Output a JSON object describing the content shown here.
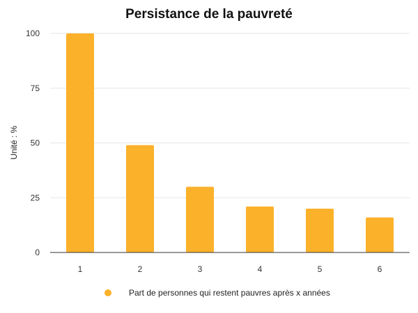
{
  "chart_data": {
    "type": "bar",
    "title": "Persistance de la pauvreté",
    "xlabel": "",
    "ylabel": "Unité : %",
    "categories": [
      "1",
      "2",
      "3",
      "4",
      "5",
      "6"
    ],
    "series": [
      {
        "name": "Part de personnes qui restent pauvres après x années",
        "values": [
          100,
          49,
          30,
          21,
          20,
          16
        ],
        "color": "#FBB12A"
      }
    ],
    "ylim": [
      0,
      100
    ],
    "yticks": [
      "0",
      "25",
      "50",
      "75",
      "100"
    ],
    "grid": true,
    "legend_position": "bottom"
  }
}
